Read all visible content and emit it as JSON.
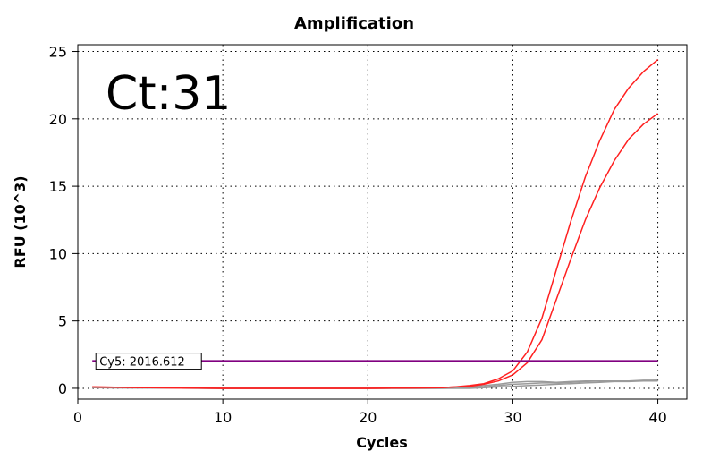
{
  "chart_data": {
    "type": "line",
    "title": "Amplification",
    "xlabel": "Cycles",
    "ylabel": "RFU (10^3)",
    "xlim": [
      0,
      42
    ],
    "ylim": [
      -0.8,
      25.5
    ],
    "xticks": [
      0,
      10,
      20,
      30,
      40
    ],
    "yticks": [
      0,
      5,
      10,
      15,
      20,
      25
    ],
    "grid": true,
    "annotation": "Ct:31",
    "threshold": {
      "label": "Cy5: 2016.612",
      "value": 2.016612,
      "x_start": 1,
      "x_end": 40,
      "color": "#800080"
    },
    "series": [
      {
        "color": "#ff2020",
        "x": [
          1,
          5,
          10,
          15,
          20,
          25,
          26,
          27,
          28,
          29,
          30,
          31,
          32,
          33,
          34,
          35,
          36,
          37,
          38,
          39,
          40
        ],
        "y": [
          0.1,
          0.05,
          0.0,
          0.0,
          0.0,
          0.05,
          0.1,
          0.2,
          0.35,
          0.7,
          1.3,
          2.7,
          5.2,
          8.8,
          12.4,
          15.7,
          18.4,
          20.7,
          22.3,
          23.5,
          24.4
        ]
      },
      {
        "color": "#ff2020",
        "x": [
          1,
          5,
          10,
          15,
          20,
          25,
          26,
          27,
          28,
          29,
          30,
          31,
          32,
          33,
          34,
          35,
          36,
          37,
          38,
          39,
          40
        ],
        "y": [
          0.1,
          0.05,
          0.0,
          0.0,
          0.0,
          0.05,
          0.1,
          0.15,
          0.3,
          0.55,
          1.0,
          1.9,
          3.6,
          6.6,
          9.6,
          12.5,
          14.9,
          16.9,
          18.5,
          19.6,
          20.4
        ]
      },
      {
        "color": "#9a9a9a",
        "x": [
          1,
          10,
          20,
          25,
          27,
          28,
          29,
          30,
          31,
          32,
          33,
          34,
          35,
          36,
          37,
          38,
          39,
          40
        ],
        "y": [
          0.05,
          0.0,
          0.0,
          0.0,
          0.05,
          0.1,
          0.2,
          0.3,
          0.35,
          0.4,
          0.4,
          0.45,
          0.5,
          0.55,
          0.55,
          0.55,
          0.55,
          0.6
        ]
      },
      {
        "color": "#9a9a9a",
        "x": [
          1,
          10,
          20,
          25,
          27,
          28,
          29,
          30,
          31,
          32,
          33,
          34,
          35,
          36,
          37,
          38,
          39,
          40
        ],
        "y": [
          0.05,
          0.0,
          0.0,
          0.05,
          0.1,
          0.2,
          0.3,
          0.45,
          0.5,
          0.5,
          0.45,
          0.5,
          0.55,
          0.55,
          0.55,
          0.55,
          0.6,
          0.6
        ]
      },
      {
        "color": "#9a9a9a",
        "x": [
          1,
          10,
          20,
          25,
          27,
          28,
          29,
          30,
          31,
          32,
          33,
          34,
          35,
          36,
          37,
          38,
          39,
          40
        ],
        "y": [
          0.05,
          0.0,
          0.0,
          0.0,
          0.0,
          0.05,
          0.1,
          0.15,
          0.2,
          0.25,
          0.3,
          0.35,
          0.4,
          0.45,
          0.5,
          0.5,
          0.55,
          0.55
        ]
      }
    ]
  }
}
